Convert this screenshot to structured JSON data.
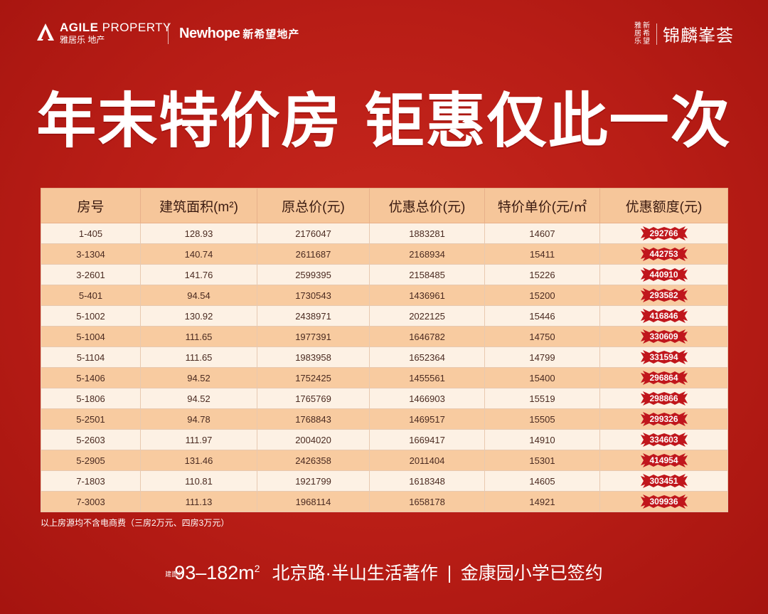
{
  "header": {
    "agile_en_bold": "AGILE",
    "agile_en_rest": " PROPERTY",
    "agile_cn": "雅居乐 地产",
    "newhope_en": "Newhope",
    "newhope_cn": "新希望地产",
    "brand_small": [
      "雅",
      "新",
      "居",
      "希",
      "乐",
      "望"
    ],
    "brand_name": "锦麟峯荟"
  },
  "headline": "年末特价房 钜惠仅此一次",
  "table": {
    "headers": [
      "房号",
      "建筑面积(m²)",
      "原总价(元)",
      "优惠总价(元)",
      "特价单价(元/㎡",
      "优惠额度(元)"
    ],
    "rows": [
      [
        "1-405",
        "128.93",
        "2176047",
        "1883281",
        "14607",
        "292766"
      ],
      [
        "3-1304",
        "140.74",
        "2611687",
        "2168934",
        "15411",
        "442753"
      ],
      [
        "3-2601",
        "141.76",
        "2599395",
        "2158485",
        "15226",
        "440910"
      ],
      [
        "5-401",
        "94.54",
        "1730543",
        "1436961",
        "15200",
        "293582"
      ],
      [
        "5-1002",
        "130.92",
        "2438971",
        "2022125",
        "15446",
        "416846"
      ],
      [
        "5-1004",
        "111.65",
        "1977391",
        "1646782",
        "14750",
        "330609"
      ],
      [
        "5-1104",
        "111.65",
        "1983958",
        "1652364",
        "14799",
        "331594"
      ],
      [
        "5-1406",
        "94.52",
        "1752425",
        "1455561",
        "15400",
        "296864"
      ],
      [
        "5-1806",
        "94.52",
        "1765769",
        "1466903",
        "15519",
        "298866"
      ],
      [
        "5-2501",
        "94.78",
        "1768843",
        "1469517",
        "15505",
        "299326"
      ],
      [
        "5-2603",
        "111.97",
        "2004020",
        "1669417",
        "14910",
        "334603"
      ],
      [
        "5-2905",
        "131.46",
        "2426358",
        "2011404",
        "15301",
        "414954"
      ],
      [
        "7-1803",
        "110.81",
        "1921799",
        "1618348",
        "14605",
        "303451"
      ],
      [
        "7-3003",
        "111.13",
        "1968114",
        "1658178",
        "14921",
        "309936"
      ]
    ]
  },
  "note": "以上房源均不含电商费（三房2万元、四房3万元）",
  "footer": {
    "area_label": "建面约",
    "area_range": "93–182m",
    "area_sup": "2",
    "slogan1": "北京路·半山生活著作",
    "slogan2": "金康园小学已签约"
  },
  "colors": {
    "background": "#b81d16",
    "table_header": "#f6c69a",
    "row_light": "#fdf1e4",
    "row_dark": "#f8cba0",
    "burst": "#c0161c"
  }
}
